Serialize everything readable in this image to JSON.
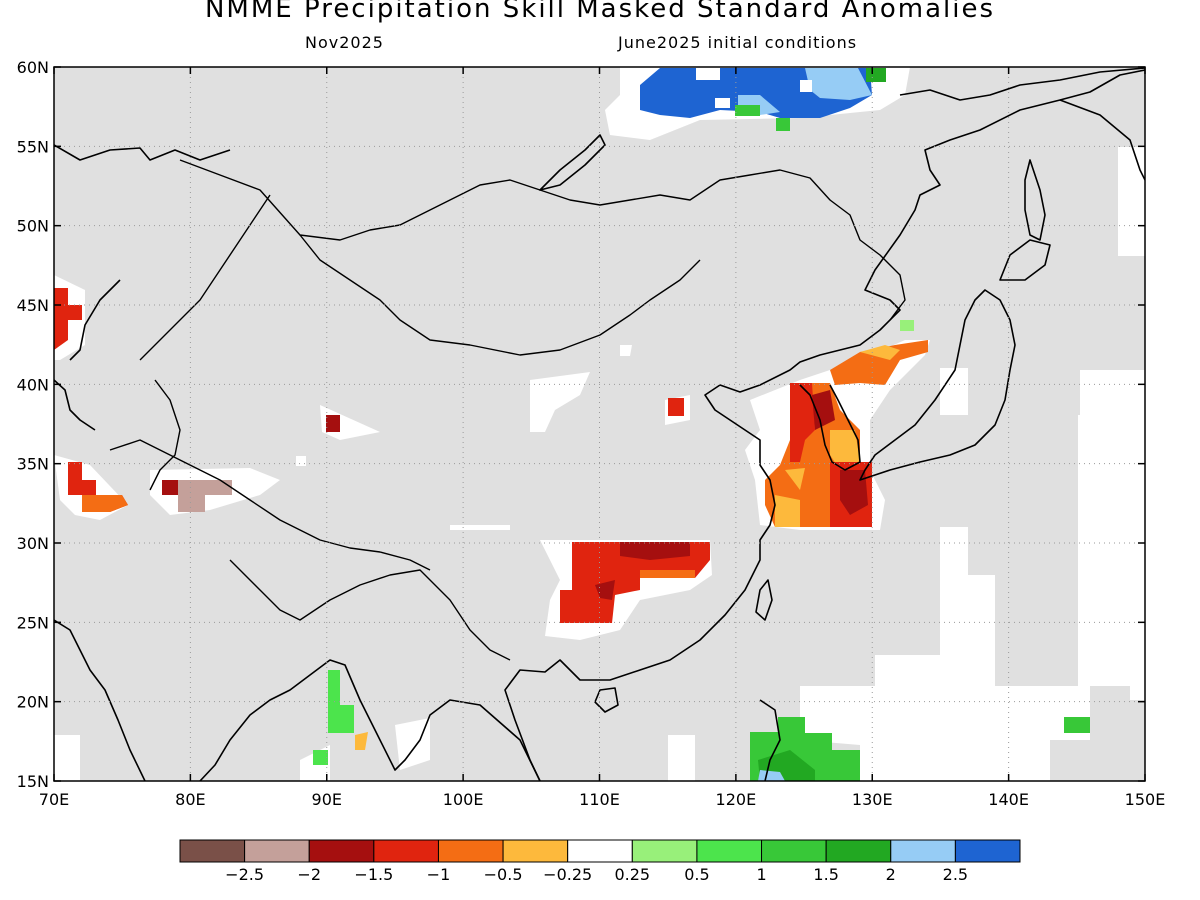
{
  "title": "NMME Precipitation Skill Masked Standard Anomalies",
  "subtitle_left": "Nov2025",
  "subtitle_right": "June2025 initial conditions",
  "map": {
    "lon_range": [
      70,
      150
    ],
    "lat_range": [
      15,
      60
    ],
    "background_color": "#e0e0e0",
    "gridlines": true,
    "lat_ticks": [
      "15N",
      "20N",
      "25N",
      "30N",
      "35N",
      "40N",
      "45N",
      "50N",
      "55N",
      "60N"
    ],
    "lon_ticks": [
      "70E",
      "80E",
      "90E",
      "100E",
      "110E",
      "120E",
      "130E",
      "140E",
      "150E"
    ]
  },
  "colorbar": {
    "colors": [
      "#7a5048",
      "#c4a09a",
      "#a50f0f",
      "#e0240f",
      "#f46d14",
      "#fdb93c",
      "#ffffff",
      "#98f07a",
      "#4ce44c",
      "#38c838",
      "#22a822",
      "#96ccf5",
      "#1e64d2"
    ],
    "labels": [
      "-2.5",
      "-2",
      "-1.5",
      "-1",
      "-0.5",
      "-0.25",
      "0.25",
      "0.5",
      "1",
      "1.5",
      "2",
      "2.5"
    ]
  }
}
